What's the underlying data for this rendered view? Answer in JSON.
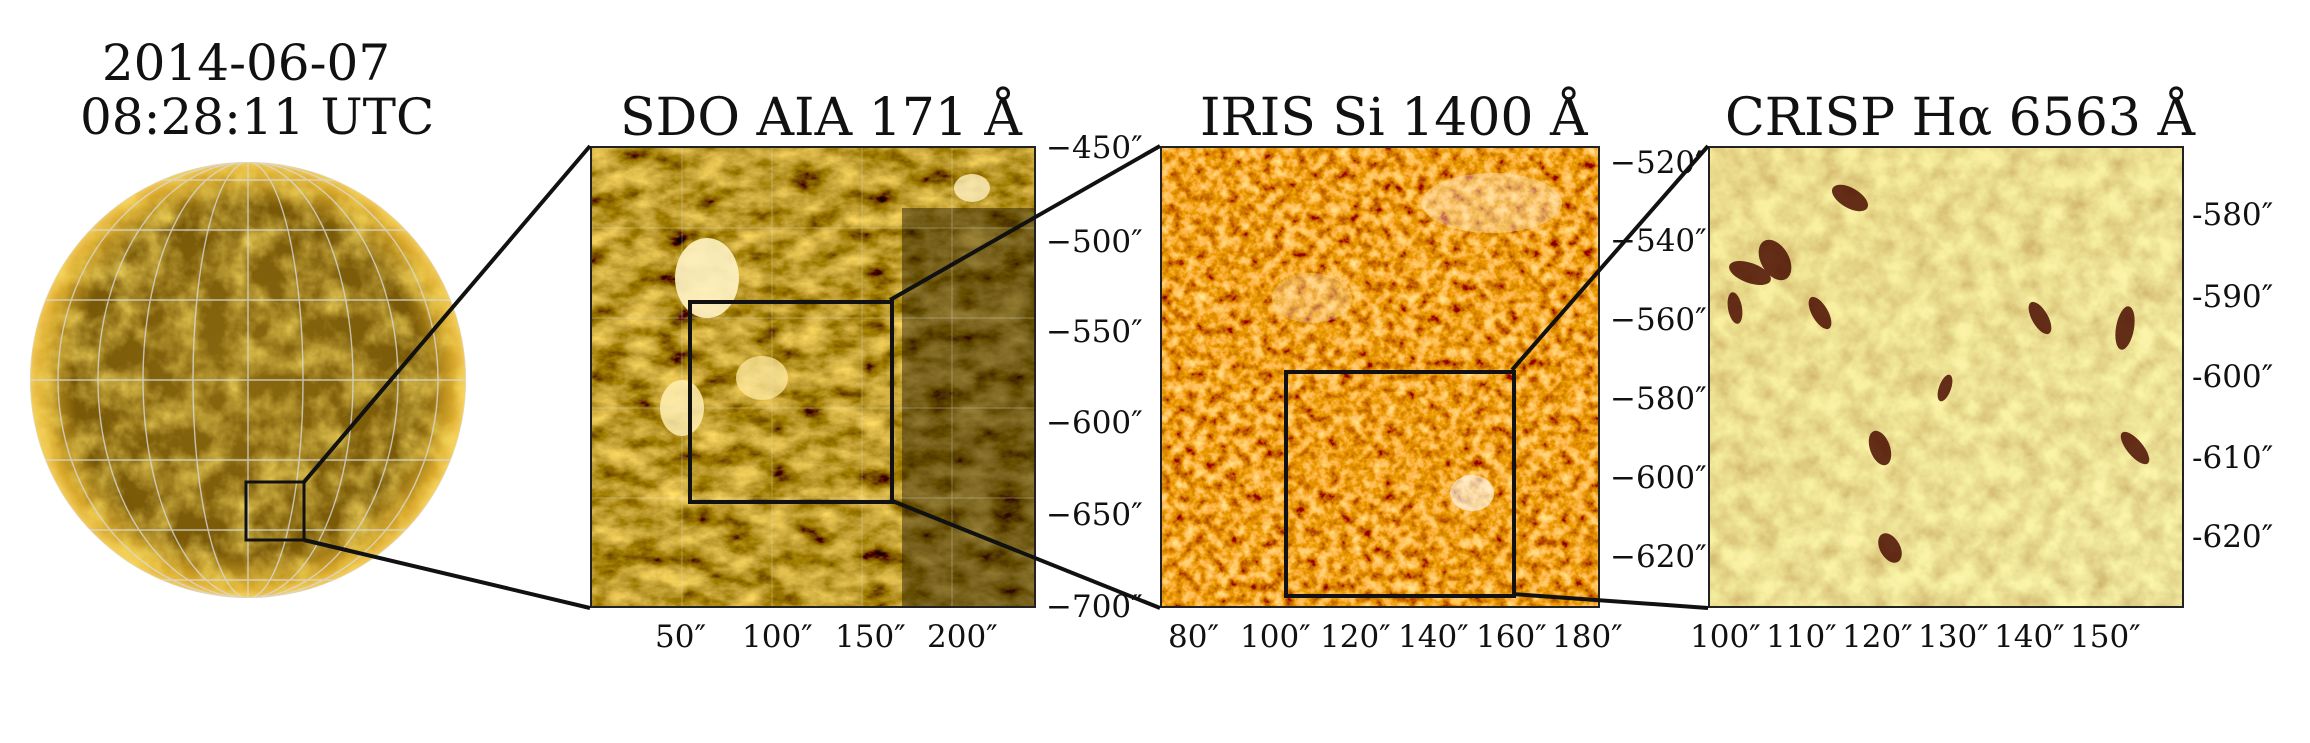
{
  "datetime": {
    "date": "2014-06-07",
    "time": "08:28:11 UTC"
  },
  "panels": {
    "aia": {
      "title": "SDO AIA 171 Å",
      "x_ticks": [
        "50″",
        "100″",
        "150″",
        "200″"
      ],
      "y_ticks": [
        "−450″",
        "−500″",
        "−550″",
        "−600″",
        "−650″",
        "−700″"
      ]
    },
    "iris": {
      "title": "IRIS Si 1400 Å",
      "x_ticks": [
        "80″",
        "100″",
        "120″",
        "140″",
        "160″",
        "180″"
      ],
      "y_ticks": [
        "−520″",
        "−540″",
        "−560″",
        "−580″",
        "−600″",
        "−620″"
      ]
    },
    "crisp": {
      "title": "CRISP Hα 6563 Å",
      "x_ticks": [
        "100″",
        "110″",
        "120″",
        "130″",
        "140″",
        "150″"
      ],
      "y_ticks": [
        "-580″",
        "-590″",
        "-600″",
        "-610″",
        "-620″"
      ]
    }
  },
  "colors": {
    "aia_bright": "#ffe9a0",
    "aia_mid": "#b8860b",
    "aia_dark": "#2a1f00",
    "iris_bright": "#fff4e0",
    "iris_mid": "#c0600a",
    "iris_dark": "#4a1500",
    "crisp_bright": "#ffe08a",
    "crisp_mid": "#f0a030",
    "crisp_dark": "#5a1000",
    "frame": "#111111"
  }
}
